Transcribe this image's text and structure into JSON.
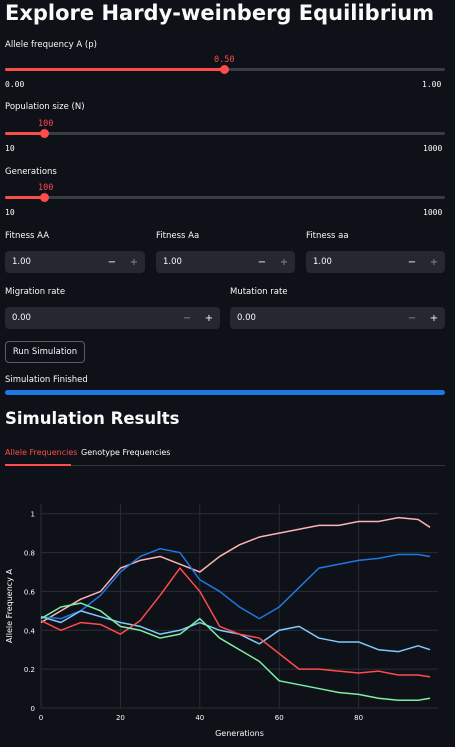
{
  "title": "Explore Hardy-weinberg Equilibrium",
  "sliders": {
    "allele": {
      "label": "Allele frequency A (p)",
      "value": "0.50",
      "min": "0.00",
      "max": "1.00",
      "frac": 0.5
    },
    "population": {
      "label": "Population size (N)",
      "value": "100",
      "min": "10",
      "max": "1000",
      "frac": 0.091
    },
    "generations": {
      "label": "Generations",
      "value": "100",
      "min": "10",
      "max": "1000",
      "frac": 0.091
    }
  },
  "fitness": {
    "AA": {
      "label": "Fitness AA",
      "value": "1.00"
    },
    "Aa": {
      "label": "Fitness Aa",
      "value": "1.00"
    },
    "aa": {
      "label": "Fitness aa",
      "value": "1.00"
    }
  },
  "migration": {
    "label": "Migration rate",
    "value": "0.00"
  },
  "mutation": {
    "label": "Mutation rate",
    "value": "0.00"
  },
  "stepper": {
    "minus": "−",
    "plus": "+"
  },
  "run_button": "Run Simulation",
  "status": "Simulation Finished",
  "progress": 1.0,
  "results_title": "Simulation Results",
  "tabs": [
    {
      "label": "Allele Frequencies",
      "active": true
    },
    {
      "label": "Genotype Frequencies",
      "active": false
    }
  ],
  "chart_data": {
    "type": "line",
    "xlabel": "Generations",
    "ylabel": "Allele Frequency A",
    "xlim": [
      0,
      100
    ],
    "ylim": [
      0,
      1.05
    ],
    "xticks": [
      0,
      20,
      40,
      60,
      80
    ],
    "yticks": [
      0,
      0.2,
      0.4,
      0.6,
      0.8,
      1
    ],
    "ytick_labels": [
      "0",
      "0.2",
      "0.4",
      "0.6",
      "0.8",
      "1"
    ],
    "grid": true,
    "x": [
      0,
      5,
      10,
      15,
      20,
      25,
      30,
      35,
      40,
      45,
      50,
      55,
      60,
      65,
      70,
      75,
      80,
      85,
      90,
      95,
      98
    ],
    "series": [
      {
        "color": "#ffb3b3",
        "values": [
          0.44,
          0.5,
          0.56,
          0.6,
          0.72,
          0.76,
          0.78,
          0.74,
          0.7,
          0.78,
          0.84,
          0.88,
          0.9,
          0.92,
          0.94,
          0.94,
          0.96,
          0.96,
          0.98,
          0.97,
          0.93
        ]
      },
      {
        "color": "#1f77e6",
        "values": [
          0.47,
          0.46,
          0.5,
          0.58,
          0.7,
          0.78,
          0.82,
          0.8,
          0.66,
          0.6,
          0.52,
          0.46,
          0.52,
          0.62,
          0.72,
          0.74,
          0.76,
          0.77,
          0.79,
          0.79,
          0.78
        ]
      },
      {
        "color": "#83c9ff",
        "values": [
          0.47,
          0.44,
          0.5,
          0.47,
          0.44,
          0.42,
          0.38,
          0.4,
          0.44,
          0.4,
          0.38,
          0.33,
          0.4,
          0.42,
          0.36,
          0.34,
          0.34,
          0.3,
          0.29,
          0.32,
          0.3
        ]
      },
      {
        "color": "#ff4b4b",
        "values": [
          0.45,
          0.4,
          0.44,
          0.43,
          0.38,
          0.45,
          0.58,
          0.72,
          0.6,
          0.42,
          0.38,
          0.36,
          0.28,
          0.2,
          0.2,
          0.19,
          0.18,
          0.19,
          0.17,
          0.17,
          0.16
        ]
      },
      {
        "color": "#7defa1",
        "values": [
          0.46,
          0.52,
          0.54,
          0.5,
          0.42,
          0.4,
          0.36,
          0.38,
          0.46,
          0.36,
          0.3,
          0.24,
          0.14,
          0.12,
          0.1,
          0.08,
          0.07,
          0.05,
          0.04,
          0.04,
          0.05
        ]
      }
    ]
  }
}
